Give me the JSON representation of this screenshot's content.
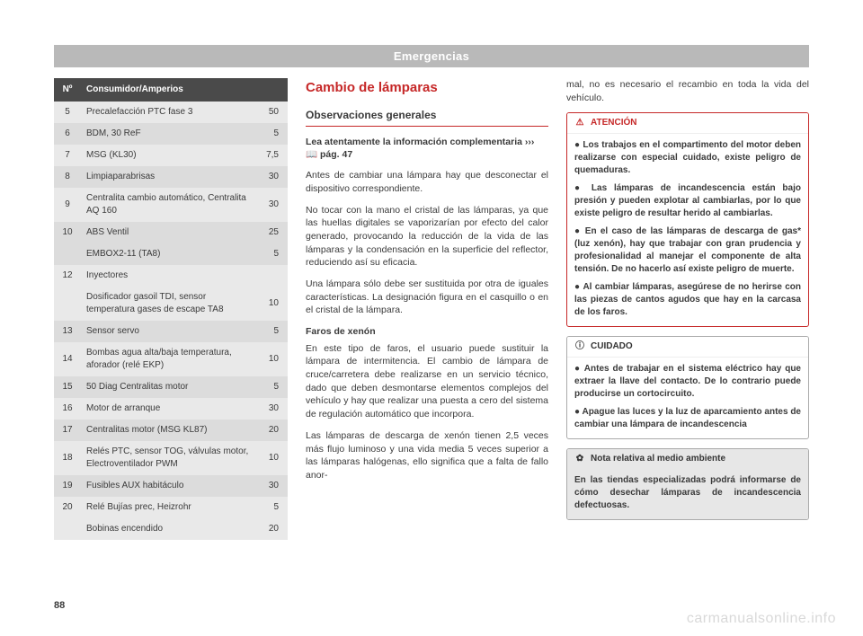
{
  "header": {
    "title": "Emergencias"
  },
  "page_number": "88",
  "watermark": "carmanualsonline.info",
  "fuse_table": {
    "columns": [
      "Nº",
      "Consumidor/Amperios",
      ""
    ],
    "rows": [
      {
        "n": "5",
        "desc": "Precalefacción PTC fase 3",
        "amp": "50",
        "shade": "odd"
      },
      {
        "n": "6",
        "desc": "BDM, 30 ReF",
        "amp": "5",
        "shade": "even"
      },
      {
        "n": "7",
        "desc": "MSG (KL30)",
        "amp": "7,5",
        "shade": "odd"
      },
      {
        "n": "8",
        "desc": "Limpiaparabrisas",
        "amp": "30",
        "shade": "even"
      },
      {
        "n": "9",
        "desc": "Centralita cambio automático, Centralita AQ 160",
        "amp": "30",
        "shade": "odd"
      },
      {
        "n": "10",
        "desc": "ABS Ventil",
        "amp": "25",
        "shade": "even"
      },
      {
        "n": "",
        "desc": "EMBOX2-11 (TA8)",
        "amp": "5",
        "shade": "even"
      },
      {
        "n": "12",
        "desc": "Inyectores",
        "amp": "",
        "shade": "odd"
      },
      {
        "n": "",
        "desc": "Dosificador gasoil TDI, sensor temperatura gases de escape TA8",
        "amp": "10",
        "shade": "odd"
      },
      {
        "n": "13",
        "desc": "Sensor servo",
        "amp": "5",
        "shade": "even"
      },
      {
        "n": "14",
        "desc": "Bombas agua alta/baja temperatura, aforador (relé EKP)",
        "amp": "10",
        "shade": "odd"
      },
      {
        "n": "15",
        "desc": "50 Diag Centralitas motor",
        "amp": "5",
        "shade": "even"
      },
      {
        "n": "16",
        "desc": "Motor de arranque",
        "amp": "30",
        "shade": "odd"
      },
      {
        "n": "17",
        "desc": "Centralitas motor (MSG KL87)",
        "amp": "20",
        "shade": "even"
      },
      {
        "n": "18",
        "desc": "Relés PTC, sensor TOG, válvulas motor, Electroventilador PWM",
        "amp": "10",
        "shade": "odd"
      },
      {
        "n": "19",
        "desc": "Fusibles AUX habitáculo",
        "amp": "30",
        "shade": "even"
      },
      {
        "n": "20",
        "desc": "Relé Bujías prec, Heizrohr",
        "amp": "5",
        "shade": "odd"
      },
      {
        "n": "",
        "desc": "Bobinas encendido",
        "amp": "20",
        "shade": "odd"
      }
    ]
  },
  "mid": {
    "section_title": "Cambio de lámparas",
    "subheading": "Observaciones generales",
    "lead_prefix": "Lea atentamente la información complementaria ››› ",
    "lead_icon": "📖",
    "lead_suffix": " pág. 47",
    "paras": [
      "Antes de cambiar una lámpara hay que desconectar el dispositivo correspondiente.",
      "No tocar con la mano el cristal de las lámparas, ya que las huellas digitales se vaporizarían por efecto del calor generado, provocando la reducción de la vida de las lámparas y la condensación en la superficie del reflector, reduciendo así su eficacia.",
      "Una lámpara sólo debe ser sustituida por otra de iguales características. La designación figura en el casquillo o en el cristal de la lámpara."
    ],
    "mini_head": "Faros de xenón",
    "xenon_paras": [
      "En este tipo de faros, el usuario puede sustituir la lámpara de intermitencia. El cambio de lámpara de cruce/carretera debe realizarse en un servicio técnico, dado que deben desmontarse elementos complejos del vehículo y hay que realizar una puesta a cero del sistema de regulación automático que incorpora.",
      "Las lámparas de descarga de xenón tienen 2,5 veces más flujo luminoso y una vida media 5 veces superior a las lámparas halógenas, ello significa que a falta de fallo anor-"
    ]
  },
  "right": {
    "continuation": "mal, no es necesario el recambio en toda la vida del vehículo.",
    "warn": {
      "title": "ATENCIÓN",
      "icon": "⚠",
      "items": [
        "● Los trabajos en el compartimento del motor deben realizarse con especial cuidado, existe peligro de quemaduras.",
        "● Las lámparas de incandescencia están bajo presión y pueden explotar al cambiarlas, por lo que existe peligro de resultar herido al cambiarlas.",
        "● En el caso de las lámparas de descarga de gas* (luz xenón), hay que trabajar con gran prudencia y profesionalidad al manejar el componente de alta tensión. De no hacerlo así existe peligro de muerte.",
        "● Al cambiar lámparas, asegúrese de no herirse con las piezas de cantos agudos que hay en la carcasa de los faros."
      ]
    },
    "care": {
      "title": "CUIDADO",
      "icon": "ⓘ",
      "items": [
        "● Antes de trabajar en el sistema eléctrico hay que extraer la llave del contacto. De lo contrario puede producirse un cortocircuito.",
        "● Apague las luces y la luz de aparcamiento antes de cambiar una lámpara de incandescencia"
      ]
    },
    "env": {
      "title": "Nota relativa al medio ambiente",
      "icon": "✿",
      "text": "En las tiendas especializadas podrá informarse de cómo desechar lámparas de incandescencia defectuosas."
    }
  }
}
